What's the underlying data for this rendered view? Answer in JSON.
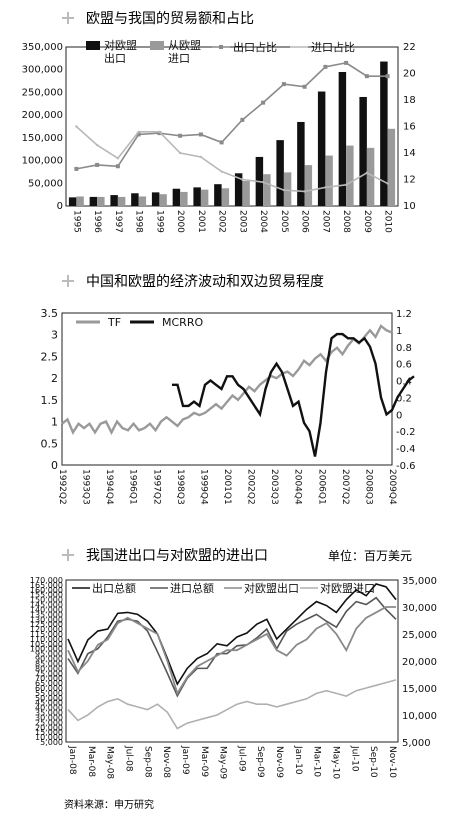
{
  "chart_data": [
    {
      "type": "bar",
      "title": "欧盟与我国的贸易额和占比",
      "categories": [
        "1995",
        "1996",
        "1997",
        "1998",
        "1999",
        "2000",
        "2001",
        "2002",
        "2003",
        "2004",
        "2005",
        "2006",
        "2007",
        "2008",
        "2009",
        "2010"
      ],
      "ylim": [
        0,
        350000
      ],
      "y2lim": [
        10,
        22
      ],
      "yticks": [
        "0",
        "50,000",
        "100,000",
        "150,000",
        "200,000",
        "250,000",
        "300,000",
        "350,000"
      ],
      "y2ticks": [
        "10",
        "12",
        "14",
        "16",
        "18",
        "20",
        "22"
      ],
      "legend": [
        "对欧盟出口",
        "从欧盟进口",
        "出口占比",
        "进口占比"
      ],
      "series": [
        {
          "name": "对欧盟出口",
          "kind": "bar",
          "color": "#111111",
          "values": [
            19000,
            20000,
            24000,
            28000,
            30000,
            38000,
            41000,
            48000,
            72000,
            108000,
            145000,
            185000,
            252000,
            295000,
            240000,
            318000
          ]
        },
        {
          "name": "从欧盟进口",
          "kind": "bar",
          "color": "#9a9a9a",
          "values": [
            21000,
            20000,
            20000,
            21000,
            26000,
            31000,
            36000,
            39000,
            55000,
            70000,
            74000,
            90000,
            111000,
            133000,
            128000,
            170000
          ]
        },
        {
          "name": "出口占比",
          "kind": "line",
          "color": "#8a8a8a",
          "values": [
            12.8,
            13.1,
            13.0,
            15.4,
            15.5,
            15.3,
            15.4,
            14.8,
            16.5,
            17.8,
            19.2,
            19.0,
            20.5,
            20.8,
            19.8,
            19.8
          ]
        },
        {
          "name": "进口占比",
          "kind": "line",
          "color": "#b8b8b8",
          "values": [
            16.0,
            14.6,
            13.6,
            15.6,
            15.6,
            14.0,
            13.7,
            12.6,
            12.0,
            11.8,
            11.2,
            11.1,
            11.4,
            11.6,
            12.5,
            11.7
          ]
        }
      ]
    },
    {
      "type": "line",
      "title": "中国和欧盟的经济波动和双边贸易程度",
      "x_labels": [
        "1992Q2",
        "1993Q3",
        "1994Q4",
        "1996Q1",
        "1997Q2",
        "1998Q3",
        "1999Q4",
        "2001Q1",
        "2002Q2",
        "2003Q3",
        "2004Q4",
        "2006Q1",
        "2007Q2",
        "2008Q3",
        "2009Q4"
      ],
      "ylim": [
        0,
        3.5
      ],
      "y2lim": [
        -0.6,
        1.2
      ],
      "yticks": [
        "0",
        "0.5",
        "1",
        "1.5",
        "2",
        "2.5",
        "3",
        "3.5"
      ],
      "y2ticks": [
        "-0.6",
        "-0.4",
        "-0.2",
        "0",
        "0.2",
        "0.4",
        "0.6",
        "0.8",
        "1",
        "1.2"
      ],
      "legend": [
        "TF",
        "MCRRO"
      ],
      "series": [
        {
          "name": "TF",
          "axis": "left",
          "color": "#9a9a9a",
          "values": [
            0.95,
            1.05,
            0.75,
            0.95,
            0.85,
            0.95,
            0.75,
            0.95,
            1.0,
            0.75,
            1.0,
            0.85,
            0.8,
            0.95,
            0.8,
            0.85,
            0.95,
            0.8,
            1.0,
            1.1,
            1.0,
            0.9,
            1.05,
            1.1,
            1.2,
            1.15,
            1.2,
            1.3,
            1.4,
            1.3,
            1.45,
            1.6,
            1.5,
            1.65,
            1.8,
            1.7,
            1.85,
            1.95,
            2.05,
            2.0,
            2.1,
            2.15,
            2.05,
            2.2,
            2.4,
            2.3,
            2.45,
            2.55,
            2.4,
            2.6,
            2.7,
            2.55,
            2.75,
            2.9,
            2.8,
            2.95,
            3.1,
            2.95,
            3.2,
            3.1,
            3.05
          ]
        },
        {
          "name": "MCRRO",
          "axis": "right",
          "color": "#111111",
          "start_index": 20,
          "values": [
            0.35,
            0.35,
            0.1,
            0.1,
            0.15,
            0.1,
            0.35,
            0.4,
            0.35,
            0.3,
            0.45,
            0.45,
            0.35,
            0.3,
            0.2,
            0.1,
            0.0,
            0.3,
            0.5,
            0.6,
            0.5,
            0.3,
            0.1,
            0.15,
            -0.1,
            -0.2,
            -0.5,
            -0.1,
            0.5,
            0.9,
            0.95,
            0.95,
            0.9,
            0.9,
            0.85,
            0.9,
            0.8,
            0.6,
            0.2,
            0.0,
            0.05,
            0.2,
            0.3,
            0.4,
            0.45
          ]
        }
      ]
    },
    {
      "type": "line",
      "title": "我国进出口与对欧盟的进出口",
      "unit": "单位：百万美元",
      "x_labels": [
        "Jan-08",
        "Mar-08",
        "May-08",
        "Jul-08",
        "Sep-08",
        "Nov-08",
        "Jan-09",
        "Mar-09",
        "May-09",
        "Jul-09",
        "Sep-09",
        "Nov-09",
        "Jan-10",
        "Mar-10",
        "May-10",
        "Jul-10",
        "Sep-10",
        "Nov-10"
      ],
      "ylim": [
        5000,
        170000
      ],
      "y2lim": [
        5000,
        35000
      ],
      "yticks": [
        "5,000",
        "10,000",
        "15,000",
        "20,000",
        "25,000",
        "30,000",
        "35,000",
        "40,000",
        "45,000",
        "50,000",
        "55,000",
        "60,000",
        "65,000",
        "70,000",
        "75,000",
        "80,000",
        "85,000",
        "90,000",
        "95,000",
        "100,000",
        "105,000",
        "110,000",
        "115,000",
        "120,000",
        "125,000",
        "130,000",
        "135,000",
        "140,000",
        "145,000",
        "150,000",
        "155,000",
        "160,000",
        "165,000",
        "170,000"
      ],
      "y2ticks": [
        "5,000",
        "10,000",
        "15,000",
        "20,000",
        "25,000",
        "30,000",
        "35,000"
      ],
      "legend": [
        "出口总额",
        "进口总额",
        "对欧盟出口",
        "对欧盟进口"
      ],
      "series": [
        {
          "name": "出口总额",
          "axis": "left",
          "color": "#111111",
          "values": [
            110000,
            87000,
            109000,
            118000,
            120000,
            136000,
            137000,
            135000,
            128000,
            115000,
            90000,
            64000,
            80000,
            90000,
            95000,
            105000,
            103000,
            112000,
            116000,
            125000,
            130000,
            110000,
            120000,
            130000,
            140000,
            148000,
            144000,
            137000,
            150000,
            160000,
            154000,
            166000,
            163000,
            150000
          ]
        },
        {
          "name": "进口总额",
          "axis": "left",
          "color": "#555555",
          "values": [
            90000,
            75000,
            95000,
            100000,
            112000,
            128000,
            130000,
            128000,
            118000,
            97000,
            75000,
            52000,
            70000,
            80000,
            80000,
            95000,
            95000,
            103000,
            104000,
            111000,
            120000,
            100000,
            118000,
            125000,
            130000,
            135000,
            128000,
            122000,
            138000,
            148000,
            145000,
            152000,
            140000,
            130000
          ]
        },
        {
          "name": "对欧盟出口",
          "axis": "right",
          "color": "#8a8a8a",
          "values": [
            22000,
            18000,
            20000,
            23000,
            24000,
            27000,
            28000,
            27000,
            26000,
            25000,
            20000,
            14000,
            17000,
            19000,
            20000,
            21000,
            22000,
            22000,
            23000,
            24000,
            25000,
            22000,
            21000,
            23000,
            24000,
            26000,
            27000,
            25000,
            22000,
            26000,
            28000,
            29000,
            30000,
            30000
          ]
        },
        {
          "name": "对欧盟进口",
          "axis": "right",
          "color": "#b0b0b0",
          "values": [
            11000,
            9000,
            10000,
            11500,
            12500,
            13000,
            12000,
            11500,
            11000,
            12000,
            10500,
            7500,
            8500,
            9000,
            9500,
            10000,
            11000,
            12000,
            12500,
            12000,
            12000,
            11500,
            12000,
            12500,
            13000,
            14000,
            14500,
            14000,
            13500,
            14500,
            15000,
            15500,
            16000,
            16500
          ]
        }
      ]
    }
  ],
  "footer": {
    "source": "资料来源：申万研究"
  }
}
